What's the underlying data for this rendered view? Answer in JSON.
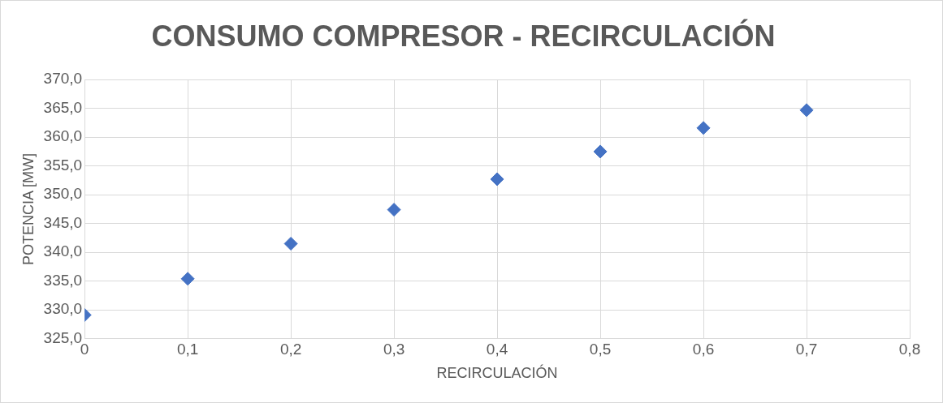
{
  "chart_data": {
    "type": "scatter",
    "title": "CONSUMO COMPRESOR - RECIRCULACIÓN",
    "xlabel": "RECIRCULACIÓN",
    "ylabel": "POTENCIA [MW]",
    "x": [
      0,
      0.1,
      0.2,
      0.3,
      0.4,
      0.5,
      0.6,
      0.7
    ],
    "series": [
      {
        "color": "#4472c4",
        "values": [
          329.1,
          335.4,
          341.5,
          347.4,
          352.7,
          357.5,
          361.6,
          364.7
        ]
      }
    ],
    "xlim": [
      0,
      0.8
    ],
    "xticks": [
      0,
      {
        "value": 0.1,
        "label": "0,1"
      },
      {
        "value": 0.2,
        "label": "0,2"
      },
      {
        "value": 0.3,
        "label": "0,3"
      },
      {
        "value": 0.4,
        "label": "0,4"
      },
      {
        "value": 0.5,
        "label": "0,5"
      },
      {
        "value": 0.6,
        "label": "0,6"
      },
      {
        "value": 0.7,
        "label": "0,7"
      },
      {
        "value": 0.8,
        "label": "0,8"
      }
    ],
    "ylim": [
      325,
      370
    ],
    "yticks": [
      {
        "value": 325,
        "label": "325,0"
      },
      {
        "value": 330,
        "label": "330,0"
      },
      {
        "value": 335,
        "label": "335,0"
      },
      {
        "value": 340,
        "label": "340,0"
      },
      {
        "value": 345,
        "label": "345,0"
      },
      {
        "value": 350,
        "label": "350,0"
      },
      {
        "value": 355,
        "label": "355,0"
      },
      {
        "value": 360,
        "label": "360,0"
      },
      {
        "value": 365,
        "label": "365,0"
      },
      {
        "value": 370,
        "label": "370,0"
      }
    ],
    "grid": true,
    "legend": false,
    "marker": "diamond"
  }
}
